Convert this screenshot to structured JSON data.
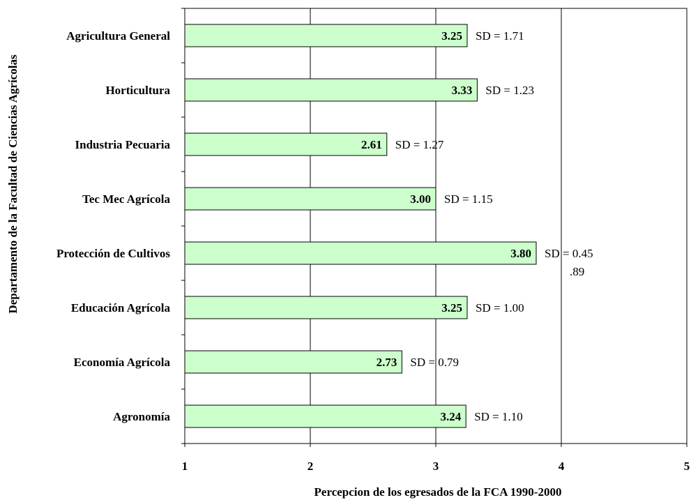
{
  "chart_data": {
    "type": "bar",
    "orientation": "horizontal",
    "xlabel": "Percepcion de los egresados de la FCA 1990-2000",
    "ylabel": "Departamento de la Facultad de Ciencias Agrícolas",
    "xlim": [
      1,
      5
    ],
    "xticks": [
      "1",
      "2",
      "3",
      "4",
      "5"
    ],
    "grid": "vertical",
    "bar_color": "#ccffcc",
    "categories": [
      "Agricultura General",
      "Horticultura",
      "Industria Pecuaria",
      "Tec Mec Agrícola",
      "Protección de Cultivos",
      "Educación Agrícola",
      "Economía Agrícola",
      "Agronomía"
    ],
    "values": [
      3.25,
      3.33,
      2.61,
      3.0,
      3.8,
      3.25,
      2.73,
      3.24
    ],
    "value_labels": [
      "3.25",
      "3.33",
      "2.61",
      "3.00",
      "3.80",
      "3.25",
      "2.73",
      "3.24"
    ],
    "annotations": [
      "SD = 1.71",
      "SD = 1.23",
      "SD = 1.27",
      "SD = 1.15",
      "SD = 0.45",
      "SD = 1.00",
      "SD = 0.79",
      "SD = 1.10"
    ],
    "extra_annotation": ".89"
  }
}
